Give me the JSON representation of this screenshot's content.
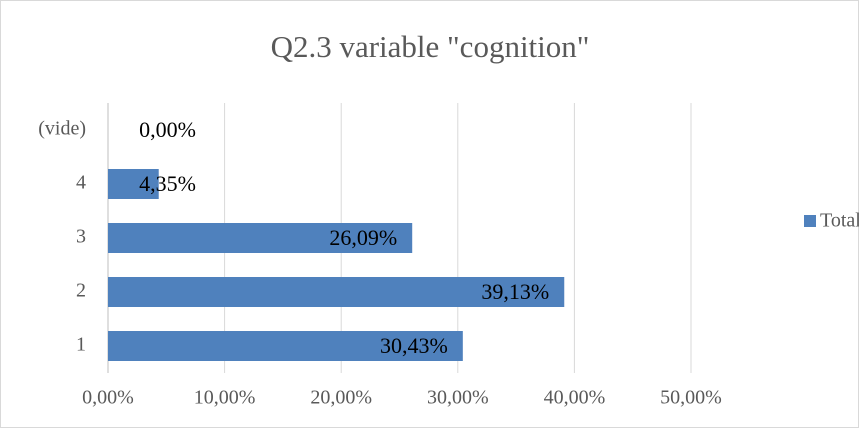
{
  "chart_data": {
    "type": "barh",
    "title": "Q2.3 variable \"cognition\"",
    "categories": [
      "1",
      "2",
      "3",
      "4",
      "(vide)"
    ],
    "series": [
      {
        "name": "Total",
        "color": "#4f81bd",
        "values": [
          30.43,
          39.13,
          26.09,
          4.35,
          0
        ],
        "value_labels": [
          "30,43%",
          "39,13%",
          "26,09%",
          "4,35%",
          "0,00%"
        ]
      }
    ],
    "xlim": [
      0,
      50
    ],
    "xticks": [
      {
        "value": 0,
        "label": "0,00%"
      },
      {
        "value": 10,
        "label": "10,00%"
      },
      {
        "value": 20,
        "label": "20,00%"
      },
      {
        "value": 30,
        "label": "30,00%"
      },
      {
        "value": 40,
        "label": "40,00%"
      },
      {
        "value": 50,
        "label": "50,00%"
      }
    ],
    "grid": true,
    "legend": "right"
  }
}
